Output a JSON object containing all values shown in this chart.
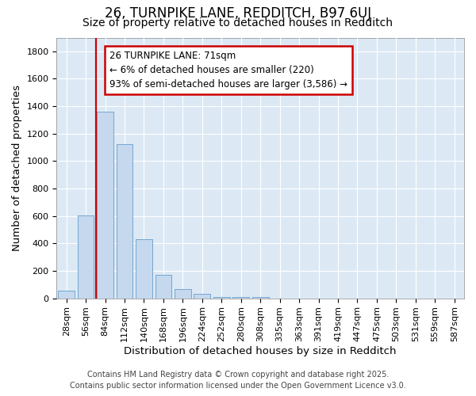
{
  "title_line1": "26, TURNPIKE LANE, REDDITCH, B97 6UJ",
  "title_line2": "Size of property relative to detached houses in Redditch",
  "xlabel": "Distribution of detached houses by size in Redditch",
  "ylabel": "Number of detached properties",
  "bar_color": "#c5d8ee",
  "bar_edge_color": "#6fa3d0",
  "background_color": "#dce9f5",
  "grid_color": "#ffffff",
  "vline_color": "#cc0000",
  "bins": [
    "28sqm",
    "56sqm",
    "84sqm",
    "112sqm",
    "140sqm",
    "168sqm",
    "196sqm",
    "224sqm",
    "252sqm",
    "280sqm",
    "308sqm",
    "335sqm",
    "363sqm",
    "391sqm",
    "419sqm",
    "447sqm",
    "475sqm",
    "503sqm",
    "531sqm",
    "559sqm",
    "587sqm"
  ],
  "values": [
    55,
    605,
    1360,
    1125,
    430,
    170,
    65,
    35,
    10,
    10,
    10,
    0,
    0,
    0,
    0,
    0,
    0,
    0,
    0,
    0,
    0
  ],
  "ylim": [
    0,
    1900
  ],
  "yticks": [
    0,
    200,
    400,
    600,
    800,
    1000,
    1200,
    1400,
    1600,
    1800
  ],
  "vline_position": 1.54,
  "annotation_text": "26 TURNPIKE LANE: 71sqm\n← 6% of detached houses are smaller (220)\n93% of semi-detached houses are larger (3,586) →",
  "annotation_box_color": "#ffffff",
  "annotation_box_edge": "#cc0000",
  "footer_line1": "Contains HM Land Registry data © Crown copyright and database right 2025.",
  "footer_line2": "Contains public sector information licensed under the Open Government Licence v3.0.",
  "title_fontsize": 12,
  "subtitle_fontsize": 10,
  "axis_label_fontsize": 9.5,
  "tick_fontsize": 8,
  "annotation_fontsize": 8.5,
  "footer_fontsize": 7
}
